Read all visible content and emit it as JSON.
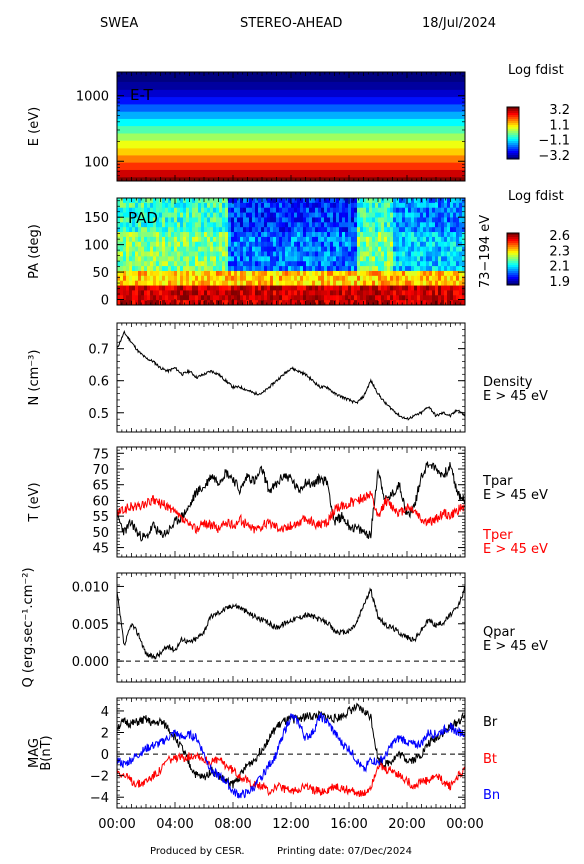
{
  "header": {
    "instrument": "SWEA",
    "spacecraft": "STEREO-AHEAD",
    "date": "18/Jul/2024"
  },
  "footer": {
    "produced": "Produced by CESR.",
    "printing": "Printing date: 07/Dec/2024"
  },
  "time_ticks": [
    "00:00",
    "04:00",
    "08:00",
    "12:00",
    "16:00",
    "20:00",
    "00:00"
  ],
  "colors": {
    "black": "#000000",
    "red": "#ff0000",
    "blue": "#0000ff"
  },
  "chart_data": [
    {
      "id": "et",
      "type": "heatmap",
      "inner_label": "E-T",
      "ylabel": "E (eV)",
      "yscale": "log",
      "ylim": [
        50,
        2300
      ],
      "yticks": [
        {
          "value": 100,
          "label": "100"
        },
        {
          "value": 1000,
          "label": "1000"
        }
      ],
      "energy_bands": [
        {
          "lo": 50,
          "hi": 58,
          "v": 3.2
        },
        {
          "lo": 58,
          "hi": 75,
          "v": 2.7
        },
        {
          "lo": 75,
          "hi": 97,
          "v": 2.1
        },
        {
          "lo": 97,
          "hi": 125,
          "v": 1.6
        },
        {
          "lo": 125,
          "hi": 160,
          "v": 1.1
        },
        {
          "lo": 160,
          "hi": 210,
          "v": 0.7
        },
        {
          "lo": 210,
          "hi": 270,
          "v": 0.2
        },
        {
          "lo": 270,
          "hi": 350,
          "v": -0.3
        },
        {
          "lo": 350,
          "hi": 450,
          "v": -0.8
        },
        {
          "lo": 450,
          "hi": 580,
          "v": -1.3
        },
        {
          "lo": 580,
          "hi": 750,
          "v": -1.8
        },
        {
          "lo": 750,
          "hi": 970,
          "v": -2.3
        },
        {
          "lo": 970,
          "hi": 1250,
          "v": -2.7
        },
        {
          "lo": 1250,
          "hi": 1650,
          "v": -3.0
        },
        {
          "lo": 1650,
          "hi": 2300,
          "v": -3.2
        }
      ],
      "colorbar": {
        "title": "Log fdist",
        "ticks": [
          "3.2",
          "1.1",
          "−1.1",
          "−3.2"
        ],
        "min": -3.2,
        "max": 3.2
      }
    },
    {
      "id": "pad",
      "type": "heatmap",
      "inner_label": "PAD",
      "ylabel": "PA (deg)",
      "right_label": "73−194 eV",
      "ylim": [
        -10,
        185
      ],
      "yticks": [
        0,
        50,
        100,
        150
      ],
      "description_levels": {
        "low_pa_value": 2.55,
        "mid_pa_value": 2.25,
        "high_pa_value": 2.05
      },
      "colorbar": {
        "title": "Log fdist",
        "ticks": [
          "2.6",
          "2.3",
          "2.1",
          "1.9"
        ],
        "min": 1.9,
        "max": 2.6
      }
    },
    {
      "id": "density",
      "type": "line",
      "ylabel": "N (cm⁻³)",
      "ylim": [
        0.44,
        0.78
      ],
      "yticks": [
        0.5,
        0.6,
        0.7
      ],
      "ytick_labels": [
        "0.5",
        "0.6",
        "0.7"
      ],
      "series": [
        {
          "name": "Density",
          "sub": "E > 45 eV",
          "color": "#000000",
          "x": [
            0,
            0.5,
            1,
            1.5,
            2,
            2.5,
            3,
            3.5,
            4,
            4.5,
            5,
            5.5,
            6,
            6.5,
            7,
            7.5,
            8,
            8.5,
            9,
            9.5,
            10,
            10.5,
            11,
            11.5,
            12,
            12.5,
            13,
            13.5,
            14,
            14.5,
            15,
            15.5,
            16,
            16.5,
            17,
            17.5,
            18,
            18.5,
            19,
            19.5,
            20,
            20.5,
            21,
            21.5,
            22,
            22.5,
            23,
            23.5,
            24
          ],
          "y": [
            0.7,
            0.75,
            0.72,
            0.69,
            0.67,
            0.66,
            0.64,
            0.63,
            0.64,
            0.62,
            0.63,
            0.61,
            0.62,
            0.63,
            0.62,
            0.6,
            0.58,
            0.58,
            0.57,
            0.56,
            0.56,
            0.58,
            0.6,
            0.62,
            0.64,
            0.63,
            0.62,
            0.6,
            0.58,
            0.58,
            0.56,
            0.55,
            0.54,
            0.53,
            0.55,
            0.6,
            0.56,
            0.53,
            0.51,
            0.49,
            0.48,
            0.49,
            0.5,
            0.52,
            0.49,
            0.5,
            0.49,
            0.51,
            0.49
          ]
        }
      ]
    },
    {
      "id": "temperature",
      "type": "line",
      "ylabel": "T (eV)",
      "ylim": [
        42,
        77
      ],
      "yticks": [
        45,
        50,
        55,
        60,
        65,
        70,
        75
      ],
      "series": [
        {
          "name": "Tpar",
          "sub": "E > 45 eV",
          "color": "#000000",
          "x": [
            0,
            0.5,
            1,
            1.5,
            2,
            2.5,
            3,
            3.5,
            4,
            4.5,
            5,
            5.5,
            6,
            6.5,
            7,
            7.5,
            8,
            8.5,
            9,
            9.5,
            10,
            10.5,
            11,
            11.5,
            12,
            12.5,
            13,
            13.5,
            14,
            14.5,
            15,
            15.5,
            16,
            16.5,
            17,
            17.5,
            18,
            18.5,
            19,
            19.5,
            20,
            20.5,
            21,
            21.5,
            22,
            22.5,
            23,
            23.5,
            24
          ],
          "y": [
            55,
            50,
            53,
            49,
            48,
            52,
            49,
            50,
            53,
            55,
            58,
            63,
            64,
            68,
            66,
            69,
            67,
            63,
            68,
            66,
            70,
            63,
            65,
            68,
            67,
            63,
            66,
            65,
            67,
            66,
            53,
            55,
            52,
            51,
            50,
            49,
            70,
            60,
            62,
            65,
            55,
            58,
            68,
            72,
            70,
            68,
            71,
            62,
            60
          ]
        },
        {
          "name": "Tper",
          "sub": "E > 45 eV",
          "color": "#ff0000",
          "x": [
            0,
            0.5,
            1,
            1.5,
            2,
            2.5,
            3,
            3.5,
            4,
            4.5,
            5,
            5.5,
            6,
            6.5,
            7,
            7.5,
            8,
            8.5,
            9,
            9.5,
            10,
            10.5,
            11,
            11.5,
            12,
            12.5,
            13,
            13.5,
            14,
            14.5,
            15,
            15.5,
            16,
            16.5,
            17,
            17.5,
            18,
            18.5,
            19,
            19.5,
            20,
            20.5,
            21,
            21.5,
            22,
            22.5,
            23,
            23.5,
            24
          ],
          "y": [
            56,
            57,
            58,
            58,
            59,
            60,
            59,
            58,
            56,
            54,
            52,
            51,
            53,
            52,
            51,
            53,
            52,
            54,
            52,
            51,
            52,
            53,
            52,
            51,
            52,
            53,
            54,
            53,
            52,
            53,
            57,
            58,
            59,
            60,
            61,
            62,
            54,
            60,
            58,
            56,
            58,
            57,
            54,
            53,
            54,
            56,
            55,
            57,
            58
          ]
        }
      ]
    },
    {
      "id": "heatflux",
      "type": "line",
      "ylabel": "Q (erg.sec⁻¹.cm⁻²)",
      "ylim": [
        -0.0028,
        0.0118
      ],
      "yticks": [
        0,
        0.005,
        0.01
      ],
      "ytick_labels": [
        "0.000",
        "0.005",
        "0.010"
      ],
      "zero_line": true,
      "series": [
        {
          "name": "Qpar",
          "sub": "E > 45 eV",
          "color": "#000000",
          "x": [
            0,
            0.5,
            1,
            1.5,
            2,
            2.5,
            3,
            3.5,
            4,
            4.5,
            5,
            5.5,
            6,
            6.5,
            7,
            7.5,
            8,
            8.5,
            9,
            9.5,
            10,
            10.5,
            11,
            11.5,
            12,
            12.5,
            13,
            13.5,
            14,
            14.5,
            15,
            15.5,
            16,
            16.5,
            17,
            17.5,
            18,
            18.5,
            19,
            19.5,
            20,
            20.5,
            21,
            21.5,
            22,
            22.5,
            23,
            23.5,
            24
          ],
          "y": [
            0.0092,
            0.002,
            0.005,
            0.0035,
            0.001,
            0.0005,
            0.001,
            0.002,
            0.0015,
            0.003,
            0.0025,
            0.003,
            0.004,
            0.006,
            0.0065,
            0.007,
            0.0075,
            0.0072,
            0.0065,
            0.006,
            0.0055,
            0.005,
            0.0045,
            0.005,
            0.0055,
            0.0058,
            0.0062,
            0.006,
            0.0055,
            0.0052,
            0.004,
            0.0038,
            0.004,
            0.005,
            0.0075,
            0.0095,
            0.006,
            0.0048,
            0.0045,
            0.0038,
            0.0032,
            0.0028,
            0.0042,
            0.0055,
            0.0048,
            0.0052,
            0.0062,
            0.0072,
            0.0098
          ]
        }
      ]
    },
    {
      "id": "mag",
      "type": "line",
      "ylabel": "MAG",
      "ylabel2": "B(nT)",
      "ylim": [
        -5,
        5.2
      ],
      "yticks": [
        -4,
        -2,
        0,
        2,
        4
      ],
      "ytick_labels": [
        "−4",
        "−2",
        "0",
        "2",
        "4"
      ],
      "zero_line": true,
      "series": [
        {
          "name": "Br",
          "color": "#000000",
          "x": [
            0,
            0.5,
            1,
            1.5,
            2,
            2.5,
            3,
            3.5,
            4,
            4.5,
            5,
            5.5,
            6,
            6.5,
            7,
            7.5,
            8,
            8.5,
            9,
            9.5,
            10,
            10.5,
            11,
            11.5,
            12,
            12.5,
            13,
            13.5,
            14,
            14.5,
            15,
            15.5,
            16,
            16.5,
            17,
            17.5,
            18,
            18.5,
            19,
            19.5,
            20,
            20.5,
            21,
            21.5,
            22,
            22.5,
            23,
            23.5,
            24
          ],
          "y": [
            2.5,
            3,
            2.8,
            3,
            3.2,
            2.8,
            3,
            2.5,
            1.5,
            0.5,
            -1,
            -2,
            -2.2,
            -1.5,
            -2,
            -2.5,
            -2.8,
            -2,
            -1,
            -0.5,
            0.5,
            1.5,
            2.5,
            3,
            3.2,
            3.3,
            3.5,
            3.5,
            3.6,
            3.4,
            3.3,
            3.5,
            4,
            4.3,
            4,
            3.5,
            -0.5,
            -1,
            -0.5,
            0,
            -0.5,
            -0.5,
            0,
            1,
            1.5,
            2,
            2.5,
            3,
            3.5
          ]
        },
        {
          "name": "Bt",
          "color": "#ff0000",
          "x": [
            0,
            0.5,
            1,
            1.5,
            2,
            2.5,
            3,
            3.5,
            4,
            4.5,
            5,
            5.5,
            6,
            6.5,
            7,
            7.5,
            8,
            8.5,
            9,
            9.5,
            10,
            10.5,
            11,
            11.5,
            12,
            12.5,
            13,
            13.5,
            14,
            14.5,
            15,
            15.5,
            16,
            16.5,
            17,
            17.5,
            18,
            18.5,
            19,
            19.5,
            20,
            20.5,
            21,
            21.5,
            22,
            22.5,
            23,
            23.5,
            24
          ],
          "y": [
            -1.5,
            -2,
            -2.5,
            -2.8,
            -2.5,
            -2,
            -1.5,
            -0.5,
            -0.5,
            -0.3,
            -0.2,
            0,
            -0.5,
            -0.8,
            -0.5,
            -1,
            -1.5,
            -2,
            -2.5,
            -2.8,
            -3,
            -3.5,
            -3,
            -3.2,
            -3.5,
            -3.2,
            -3,
            -3.3,
            -3.5,
            -3.4,
            -3,
            -3.2,
            -3.3,
            -3.5,
            -3.8,
            -3,
            -1,
            -1.5,
            -1.5,
            -2,
            -2.5,
            -3,
            -2.5,
            -2.5,
            -2,
            -2.5,
            -3,
            -2,
            -1.5
          ]
        },
        {
          "name": "Bn",
          "color": "#0000ff",
          "x": [
            0,
            0.5,
            1,
            1.5,
            2,
            2.5,
            3,
            3.5,
            4,
            4.5,
            5,
            5.5,
            6,
            6.5,
            7,
            7.5,
            8,
            8.5,
            9,
            9.5,
            10,
            10.5,
            11,
            11.5,
            12,
            12.5,
            13,
            13.5,
            14,
            14.5,
            15,
            15.5,
            16,
            16.5,
            17,
            17.5,
            18,
            18.5,
            19,
            19.5,
            20,
            20.5,
            21,
            21.5,
            22,
            22.5,
            23,
            23.5,
            24
          ],
          "y": [
            -0.5,
            -1,
            -0.5,
            0,
            0.5,
            0.8,
            1,
            1.5,
            2,
            1.5,
            1.8,
            1.5,
            0,
            -1.5,
            -2,
            -2.5,
            -3.5,
            -3.8,
            -3.6,
            -3,
            -2,
            -1,
            0,
            2,
            3.5,
            3,
            1.5,
            2,
            3.5,
            3,
            2,
            1,
            0.5,
            -0.5,
            -1.5,
            -0.5,
            -0.8,
            -0.2,
            1,
            1.5,
            1.2,
            0.8,
            1,
            2,
            1.8,
            2.2,
            2.5,
            2,
            2
          ]
        }
      ]
    }
  ]
}
